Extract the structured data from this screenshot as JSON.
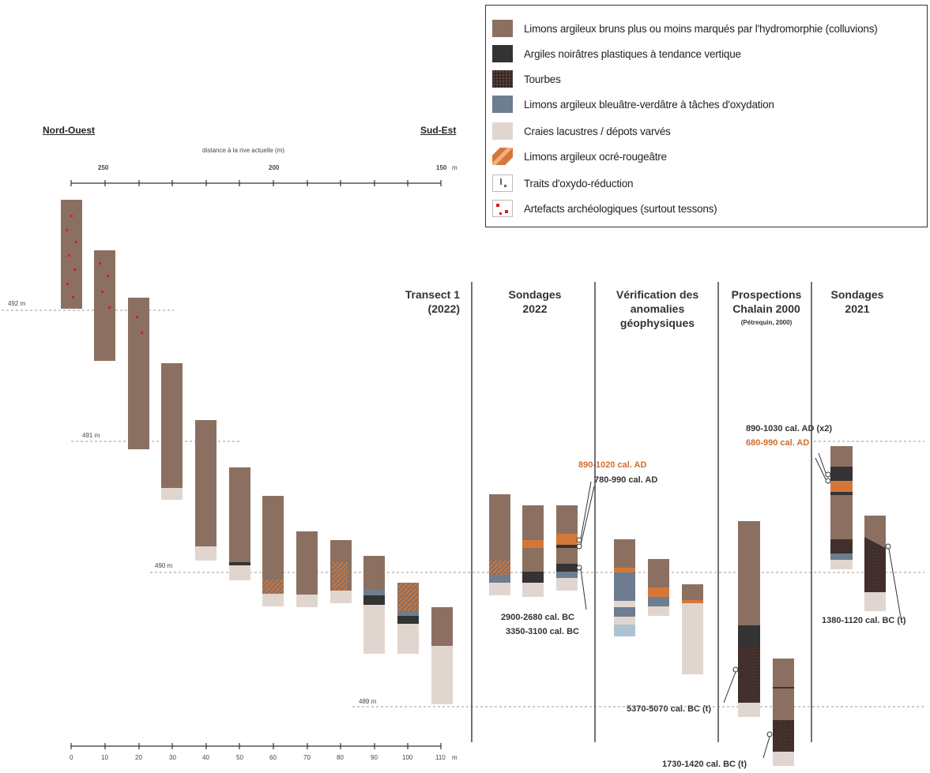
{
  "colors": {
    "brown": "#8b7061",
    "black": "#333333",
    "peat": "#3a2a28",
    "blue": "#6e7d8f",
    "chalk": "#e1d6cf",
    "orange": "#d6773a",
    "red_dot": "#d41f25",
    "date_orange": "#d26b2e"
  },
  "legend": {
    "items": [
      {
        "label": "Limons argileux bruns plus ou moins marqués par l'hydromorphie (colluvions)",
        "icon": "brown-swatch-icon"
      },
      {
        "label": "Argiles noirâtres plastiques à tendance vertique",
        "icon": "black-swatch-icon"
      },
      {
        "label": "Tourbes",
        "icon": "peat-swatch-icon"
      },
      {
        "label": "Limons argileux bleuâtre-verdâtre à tâches d'oxydation",
        "icon": "blue-swatch-icon"
      },
      {
        "label": "Craies lacustres / dépots varvés",
        "icon": "chalk-swatch-icon"
      },
      {
        "label": "Limons argileux ocré-rougeâtre",
        "icon": "ochre-swatch-icon"
      },
      {
        "label": "Traits d'oxydo-réduction",
        "icon": "oxido-swatch-icon"
      },
      {
        "label": "Artefacts archéologiques (surtout tessons)",
        "icon": "artefact-swatch-icon"
      }
    ]
  },
  "orientation": {
    "left": "Nord-Ouest",
    "right": "Sud-Est"
  },
  "top_axis": {
    "title": "distance à la rive actuelle (m)",
    "ticks": [
      "250",
      "200",
      "150",
      "m"
    ]
  },
  "bottom_axis": {
    "ticks": [
      "0",
      "10",
      "20",
      "30",
      "40",
      "50",
      "60",
      "70",
      "80",
      "90",
      "100",
      "110",
      "m"
    ]
  },
  "altitudes": [
    "492 m",
    "491 m",
    "490 m",
    "489 m"
  ],
  "sections": [
    {
      "title_line1": "Transect 1",
      "title_line2": "(2022)",
      "subtitle": ""
    },
    {
      "title_line1": "Sondages",
      "title_line2": "2022",
      "subtitle": ""
    },
    {
      "title_line1": "Vérification des",
      "title_line2": "anomalies",
      "title_line3": "géophysiques",
      "subtitle": ""
    },
    {
      "title_line1": "Prospections",
      "title_line2": "Chalain 2000",
      "subtitle": "(Pétrequin, 2000)"
    },
    {
      "title_line1": "Sondages",
      "title_line2": "2021",
      "subtitle": ""
    }
  ],
  "dates": {
    "d1": "890-1020 cal. AD",
    "d2": "780-990 cal. AD",
    "d3": "2900-2680 cal. BC",
    "d4": "3350-3100 cal. BC",
    "d5": "890-1030 cal. AD (x2)",
    "d6": "680-990 cal. AD",
    "d7": "1380-1120 cal. BC (t)",
    "d8": "5370-5070 cal. BC (t)",
    "d9": "1730-1420 cal. BC (t)"
  }
}
